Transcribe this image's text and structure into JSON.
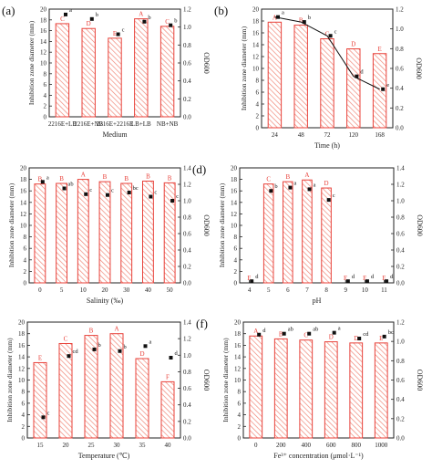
{
  "chart_data": [
    {
      "panel": "(a)",
      "type": "bar",
      "xlabel": "Medium",
      "ylabel": "Inhibition zone diameter (mm)",
      "y2label": "OD600",
      "categories": [
        "2216E+LB",
        "2216E+NB",
        "2216E+2216E",
        "LB+LB",
        "NB+NB"
      ],
      "ylim": [
        0,
        20
      ],
      "yticks": [
        0,
        2,
        4,
        6,
        8,
        10,
        12,
        14,
        16,
        18,
        20
      ],
      "y2lim": [
        0,
        1.2
      ],
      "y2ticks": [
        "0.0",
        "0.2",
        "0.4",
        "0.6",
        "0.8",
        "1.0",
        "1.2"
      ],
      "values": [
        17.3,
        16.4,
        14.6,
        18.2,
        16.8
      ],
      "bar_letters": [
        "C",
        "D",
        "E",
        "A",
        "C"
      ],
      "od_values": [
        1.14,
        1.09,
        0.92,
        1.06,
        1.02
      ],
      "od_letters": [
        "a",
        "b",
        "c",
        "b",
        "b"
      ],
      "od_line": false
    },
    {
      "panel": "(b)",
      "type": "bar",
      "xlabel": "Time (h)",
      "ylabel": "Inhibition zone diameter (mm)",
      "y2label": "OD600",
      "categories": [
        "24",
        "48",
        "72",
        "120",
        "168"
      ],
      "ylim": [
        0,
        20
      ],
      "yticks": [
        0,
        2,
        4,
        6,
        8,
        10,
        12,
        14,
        16,
        18,
        20
      ],
      "y2lim": [
        0,
        1.2
      ],
      "y2ticks": [
        "0.0",
        "0.2",
        "0.4",
        "0.6",
        "0.8",
        "1.0",
        "1.2"
      ],
      "values": [
        17.8,
        17.3,
        15.0,
        13.3,
        12.5
      ],
      "bar_letters": [
        "A",
        "B",
        "C",
        "D",
        "E"
      ],
      "od_values": [
        1.12,
        1.07,
        0.93,
        0.52,
        0.39
      ],
      "od_letters": [
        "a",
        "b",
        "c",
        "d",
        "e"
      ],
      "od_line": true
    },
    {
      "panel": "(c)",
      "type": "bar",
      "xlabel": "Salinity (‰)",
      "ylabel": "Inhibition zone diameter (mm)",
      "y2label": "OD600",
      "categories": [
        "0",
        "5",
        "10",
        "20",
        "30",
        "40",
        "50"
      ],
      "ylim": [
        0,
        20
      ],
      "yticks": [
        0,
        2,
        4,
        6,
        8,
        10,
        12,
        14,
        16,
        18,
        20
      ],
      "y2lim": [
        0,
        1.4
      ],
      "y2ticks": [
        "0.0",
        "0.2",
        "0.4",
        "0.6",
        "0.8",
        "1.0",
        "1.2",
        "1.4"
      ],
      "values": [
        17.2,
        17.3,
        18.0,
        17.6,
        17.3,
        17.7,
        17.4
      ],
      "bar_letters": [
        "B",
        "B",
        "A",
        "B",
        "B",
        "B",
        "B"
      ],
      "od_values": [
        1.23,
        1.15,
        1.08,
        1.07,
        1.1,
        1.05,
        1.0
      ],
      "od_letters": [
        "a",
        "ab",
        "c",
        "c",
        "bc",
        "c",
        "c"
      ],
      "od_line": false
    },
    {
      "panel": "(d)",
      "type": "bar",
      "xlabel": "pH",
      "ylabel": "Inhibition zone diameter (mm)",
      "y2label": "OD600",
      "categories": [
        "4",
        "5",
        "6",
        "7",
        "8",
        "9",
        "10",
        "11"
      ],
      "ylim": [
        0,
        20
      ],
      "yticks": [
        0,
        2,
        4,
        6,
        8,
        10,
        12,
        14,
        16,
        18,
        20
      ],
      "y2lim": [
        0,
        1.4
      ],
      "y2ticks": [
        "0.0",
        "0.2",
        "0.4",
        "0.6",
        "0.8",
        "1.0",
        "1.2",
        "1.4"
      ],
      "values": [
        0,
        17.2,
        17.6,
        17.9,
        16.5,
        0,
        0,
        0
      ],
      "bar_letters": [
        "E",
        "C",
        "B",
        "A",
        "D",
        "E",
        "E",
        "E"
      ],
      "od_values": [
        0.02,
        1.12,
        1.16,
        1.14,
        1.01,
        0.02,
        0.02,
        0.02
      ],
      "od_letters": [
        "d",
        "b",
        "a",
        "a",
        "c",
        "d",
        "d",
        "d"
      ],
      "od_line": false
    },
    {
      "panel": "(e)",
      "type": "bar",
      "xlabel": "Temperature (℃)",
      "ylabel": "Inhibition zone diameter (mm)",
      "y2label": "OD600",
      "categories": [
        "15",
        "20",
        "25",
        "30",
        "35",
        "40"
      ],
      "ylim": [
        0,
        20
      ],
      "yticks": [
        0,
        2,
        4,
        6,
        8,
        10,
        12,
        14,
        16,
        18,
        20
      ],
      "y2lim": [
        0,
        1.4
      ],
      "y2ticks": [
        "0.0",
        "0.2",
        "0.4",
        "0.6",
        "0.8",
        "1.0",
        "1.2",
        "1.4"
      ],
      "values": [
        13.0,
        16.3,
        17.7,
        18.0,
        13.7,
        9.7
      ],
      "bar_letters": [
        "E",
        "C",
        "B",
        "A",
        "D",
        "F"
      ],
      "od_values": [
        0.25,
        0.99,
        1.07,
        1.05,
        1.11,
        0.97
      ],
      "od_letters": [
        "c",
        "cd",
        "b",
        "b",
        "a",
        "d"
      ],
      "od_line": false
    },
    {
      "panel": "(f)",
      "type": "bar",
      "xlabel": "Fe³⁺ concentration (μmol·L⁻¹)",
      "ylabel": "Inhibition zone diameter (mm)",
      "y2label": "OD600",
      "categories": [
        "0",
        "200",
        "400",
        "600",
        "800",
        "1000"
      ],
      "ylim": [
        0,
        20
      ],
      "yticks": [
        0,
        2,
        4,
        6,
        8,
        10,
        12,
        14,
        16,
        18,
        20
      ],
      "y2lim": [
        0,
        1.2
      ],
      "y2ticks": [
        "0.0",
        "0.2",
        "0.4",
        "0.6",
        "0.8",
        "1.0",
        "1.2"
      ],
      "values": [
        17.6,
        17.1,
        16.9,
        16.6,
        16.4,
        16.4
      ],
      "bar_letters": [
        "A",
        "B",
        "C",
        "D",
        "D",
        "E"
      ],
      "od_values": [
        1.07,
        1.08,
        1.08,
        1.09,
        1.03,
        1.05
      ],
      "od_letters": [
        "d",
        "ab",
        "ab",
        "a",
        "cd",
        "bc"
      ],
      "od_line": false
    }
  ],
  "colors": {
    "bar_edge": "#e8413a",
    "bar_hatch": "#f08070",
    "letter": "#e8413a",
    "marker": "#111111",
    "axis": "#222222"
  }
}
